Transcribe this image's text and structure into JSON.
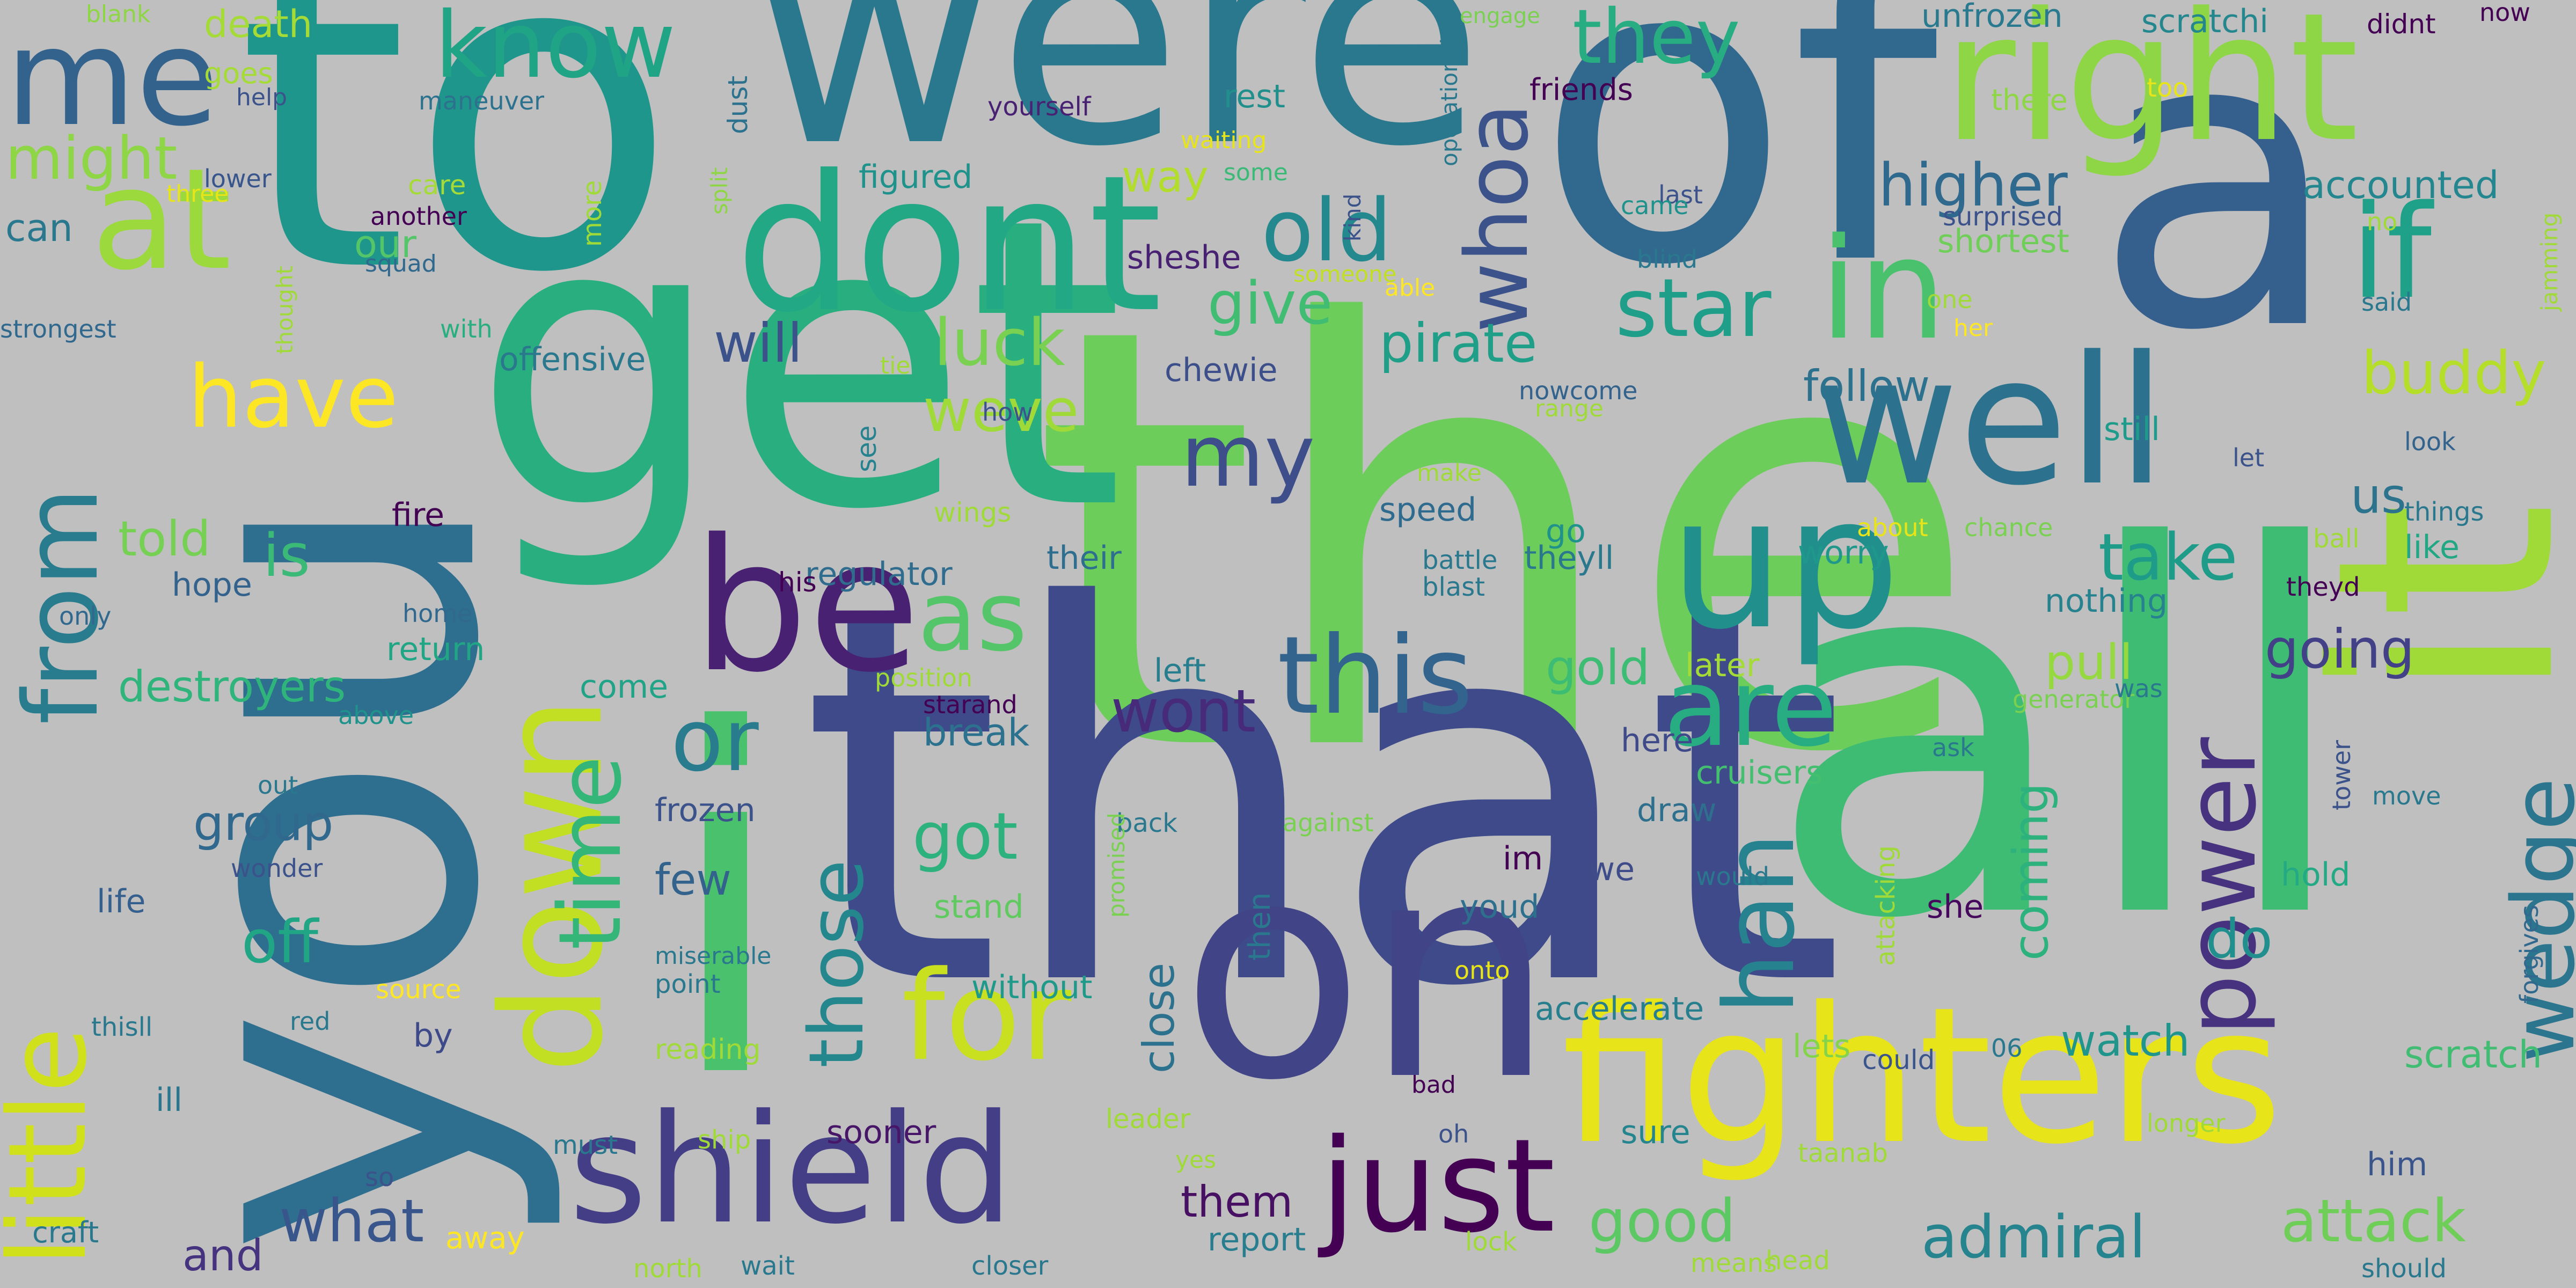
{
  "words": [
    {
      "text": "the",
      "color": "#6ccd5a"
    },
    {
      "text": "you",
      "color": "#2e6e8e"
    },
    {
      "text": "to",
      "color": "#1f968b"
    },
    {
      "text": "that",
      "color": "#3e4a89"
    },
    {
      "text": "all",
      "color": "#3fbc73"
    },
    {
      "text": "get",
      "color": "#29af7f"
    },
    {
      "text": "of",
      "color": "#31688e"
    },
    {
      "text": "were",
      "color": "#2a788e"
    },
    {
      "text": "a",
      "color": "#355f8d"
    },
    {
      "text": "it",
      "color": "#a0da39"
    },
    {
      "text": "i",
      "color": "#4ac16d"
    },
    {
      "text": "on",
      "color": "#414487"
    },
    {
      "text": "fighters",
      "color": "#e7e419"
    },
    {
      "text": "right",
      "color": "#8ed645"
    },
    {
      "text": "dont",
      "color": "#22a884"
    },
    {
      "text": "up",
      "color": "#21908d"
    },
    {
      "text": "well",
      "color": "#2c728e"
    },
    {
      "text": "be",
      "color": "#482173"
    },
    {
      "text": "shield",
      "color": "#433e85"
    },
    {
      "text": "little",
      "color": "#d0e11c"
    },
    {
      "text": "down",
      "color": "#c2df23"
    },
    {
      "text": "at",
      "color": "#9bd93c"
    },
    {
      "text": "me",
      "color": "#33638d"
    },
    {
      "text": "in",
      "color": "#4ac16d"
    },
    {
      "text": "if",
      "color": "#1fa088"
    },
    {
      "text": "just",
      "color": "#440154"
    },
    {
      "text": "this",
      "color": "#32648e"
    },
    {
      "text": "are",
      "color": "#27ad81"
    },
    {
      "text": "from",
      "color": "#287c8e"
    },
    {
      "text": "for",
      "color": "#c8e020"
    },
    {
      "text": "time",
      "color": "#34b679"
    },
    {
      "text": "han",
      "color": "#26828e"
    },
    {
      "text": "power",
      "color": "#46327e"
    },
    {
      "text": "wedge",
      "color": "#2b758e"
    },
    {
      "text": "whoa",
      "color": "#3b528b"
    },
    {
      "text": "as",
      "color": "#54c568"
    },
    {
      "text": "know",
      "color": "#20a486"
    },
    {
      "text": "have",
      "color": "#fde725"
    },
    {
      "text": "old",
      "color": "#23898e"
    },
    {
      "text": "my",
      "color": "#3d4e8a"
    },
    {
      "text": "or",
      "color": "#297b8e"
    },
    {
      "text": "those",
      "color": "#24878e"
    },
    {
      "text": "admiral",
      "color": "#25848e"
    },
    {
      "text": "attack",
      "color": "#6ece58"
    },
    {
      "text": "star",
      "color": "#1f9e89"
    },
    {
      "text": "they",
      "color": "#27ad81"
    },
    {
      "text": "good",
      "color": "#5cc863"
    },
    {
      "text": "what",
      "color": "#39568c"
    },
    {
      "text": "buddy",
      "color": "#b5de2b"
    },
    {
      "text": "take",
      "color": "#1e9c89"
    },
    {
      "text": "got",
      "color": "#2db27d"
    },
    {
      "text": "wont",
      "color": "#472a7a"
    },
    {
      "text": "luck",
      "color": "#7ad151"
    },
    {
      "text": "give",
      "color": "#40bd72"
    },
    {
      "text": "weve",
      "color": "#a0da39"
    },
    {
      "text": "pirate",
      "color": "#1f9f88"
    },
    {
      "text": "going",
      "color": "#424086"
    },
    {
      "text": "higher",
      "color": "#30698e"
    },
    {
      "text": "might",
      "color": "#8ed645"
    },
    {
      "text": "will",
      "color": "#3b528b"
    },
    {
      "text": "is",
      "color": "#3aba76"
    },
    {
      "text": "told",
      "color": "#75d054"
    },
    {
      "text": "off",
      "color": "#21a685"
    },
    {
      "text": "follow",
      "color": "#2c718e"
    },
    {
      "text": "gold",
      "color": "#3dbc74"
    },
    {
      "text": "group",
      "color": "#31688e"
    },
    {
      "text": "destroyers",
      "color": "#2fb47c"
    },
    {
      "text": "do",
      "color": "#218f8d"
    },
    {
      "text": "coming",
      "color": "#2db27d"
    },
    {
      "text": "pull",
      "color": "#95d840"
    },
    {
      "text": "watch",
      "color": "#1f958b"
    },
    {
      "text": "them",
      "color": "#471063"
    },
    {
      "text": "us",
      "color": "#2c738e"
    },
    {
      "text": "close",
      "color": "#2c728e"
    },
    {
      "text": "few",
      "color": "#33638d"
    },
    {
      "text": "and",
      "color": "#46337f"
    },
    {
      "text": "break",
      "color": "#2c728e"
    },
    {
      "text": "accounted",
      "color": "#24868e"
    },
    {
      "text": "scratch",
      "color": "#40bd72"
    },
    {
      "text": "nothing",
      "color": "#26828e"
    },
    {
      "text": "worry",
      "color": "#1f988b"
    },
    {
      "text": "theyll",
      "color": "#2a788e"
    },
    {
      "text": "speed",
      "color": "#2f6b8e"
    },
    {
      "text": "regulator",
      "color": "#2f6c8e"
    },
    {
      "text": "offensive",
      "color": "#2a788e"
    },
    {
      "text": "chewie",
      "color": "#3c4f8a"
    },
    {
      "text": "sheshe",
      "color": "#482173"
    },
    {
      "text": "figured",
      "color": "#20928c"
    },
    {
      "text": "their",
      "color": "#2e6e8e"
    },
    {
      "text": "way",
      "color": "#b2dd2d"
    },
    {
      "text": "rest",
      "color": "#21908d"
    },
    {
      "text": "unfrozen",
      "color": "#297a8e"
    },
    {
      "text": "scratchi",
      "color": "#24878e"
    },
    {
      "text": "shortest",
      "color": "#6ece58"
    },
    {
      "text": "frozen",
      "color": "#3b528b"
    },
    {
      "text": "cruisers",
      "color": "#44bf70"
    },
    {
      "text": "accelerate",
      "color": "#277f8e"
    },
    {
      "text": "sooner",
      "color": "#481668"
    },
    {
      "text": "without",
      "color": "#1f998a"
    },
    {
      "text": "stand",
      "color": "#60ca60"
    },
    {
      "text": "report",
      "color": "#287d8e"
    },
    {
      "text": "sure",
      "color": "#25858e"
    },
    {
      "text": "death",
      "color": "#a5db36"
    },
    {
      "text": "can",
      "color": "#2a788e"
    },
    {
      "text": "hope",
      "color": "#33638d"
    },
    {
      "text": "life",
      "color": "#355f8d"
    },
    {
      "text": "we",
      "color": "#3e4c8a"
    },
    {
      "text": "still",
      "color": "#1e9b8a"
    },
    {
      "text": "hold",
      "color": "#23a983"
    },
    {
      "text": "like",
      "color": "#22a785"
    },
    {
      "text": "here",
      "color": "#3e4a89"
    },
    {
      "text": "draw",
      "color": "#2e6f8e"
    },
    {
      "text": "im",
      "color": "#440154"
    },
    {
      "text": "youd",
      "color": "#2d708e"
    },
    {
      "text": "she",
      "color": "#46085c"
    },
    {
      "text": "go",
      "color": "#20928c"
    },
    {
      "text": "our",
      "color": "#54c568"
    },
    {
      "text": "ill",
      "color": "#2a768e"
    },
    {
      "text": "fire",
      "color": "#440154"
    },
    {
      "text": "by",
      "color": "#3e4989"
    },
    {
      "text": "lets",
      "color": "#84d44b"
    },
    {
      "text": "could",
      "color": "#3a548c"
    },
    {
      "text": "him",
      "color": "#3a548c"
    },
    {
      "text": "return",
      "color": "#21a685"
    },
    {
      "text": "come",
      "color": "#20a386"
    },
    {
      "text": "left",
      "color": "#277e8e"
    },
    {
      "text": "later",
      "color": "#a5db36"
    },
    {
      "text": "see",
      "color": "#26828e"
    }
  ],
  "small_words": [
    "blank",
    "goes",
    "help",
    "maneuver",
    "dust",
    "engage",
    "friends",
    "didnt",
    "now",
    "there",
    "too",
    "yourself",
    "waiting",
    "three",
    "lower",
    "care",
    "another",
    "some",
    "squad",
    "kind",
    "operational",
    "someone",
    "able",
    "thought",
    "with",
    "tie",
    "more",
    "split",
    "last",
    "surprised",
    "no",
    "jamming",
    "came",
    "blind",
    "one",
    "said",
    "her",
    "strongest",
    "how",
    "nowcome",
    "range",
    "make",
    "let",
    "look",
    "things",
    "about",
    "chance",
    "ball",
    "battle",
    "blast",
    "theyd",
    "his",
    "wings",
    "position",
    "starand",
    "above",
    "only",
    "home",
    "generator",
    "was",
    "ask",
    "tower",
    "move",
    "forgives",
    "out",
    "wonder",
    "back",
    "against",
    "onto",
    "would",
    "attacking",
    "promised",
    "then",
    "miserable",
    "point",
    "source",
    "thisll",
    "red",
    "reading",
    "bad",
    "06",
    "longer",
    "oh",
    "yes",
    "leader",
    "ship",
    "must",
    "taanab",
    "so",
    "craft",
    "away",
    "north",
    "wait",
    "closer",
    "lock",
    "means",
    "head",
    "should",
    "surface"
  ]
}
